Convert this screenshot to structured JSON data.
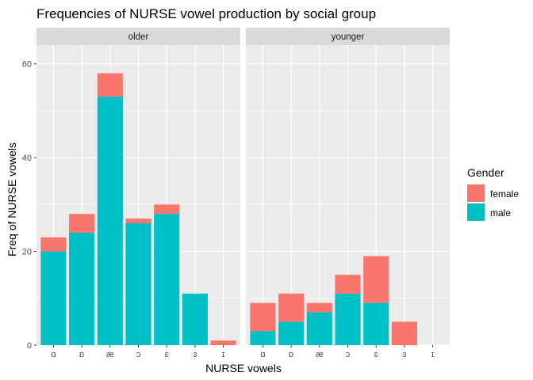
{
  "chart_data": {
    "type": "bar",
    "stacked": true,
    "title": "Frequencies of NURSE vowel production by social group",
    "xlabel": "NURSE vowels",
    "ylabel": "Freq of NURSE vowels",
    "ylim": [
      0,
      64
    ],
    "yticks": [
      0,
      20,
      40,
      60
    ],
    "grid": true,
    "legend": {
      "title": "Gender",
      "position": "right"
    },
    "colors": {
      "female": "#F8766D",
      "male": "#00BFC4",
      "panel": "#EBEBEB",
      "strip": "#D9D9D9"
    },
    "categories": [
      "ɑ",
      "ɒ",
      "æ",
      "ɔ",
      "ɛ",
      "ɜ",
      "ɪ"
    ],
    "series": [
      {
        "name": "female",
        "key": "female"
      },
      {
        "name": "male",
        "key": "male"
      }
    ],
    "panels": [
      {
        "label": "older",
        "male": [
          20,
          24,
          53,
          26,
          28,
          11,
          0
        ],
        "female": [
          3,
          4,
          5,
          1,
          2,
          0,
          1
        ]
      },
      {
        "label": "younger",
        "male": [
          3,
          5,
          7,
          11,
          9,
          0,
          0
        ],
        "female": [
          6,
          6,
          2,
          4,
          10,
          5,
          0
        ]
      }
    ]
  }
}
